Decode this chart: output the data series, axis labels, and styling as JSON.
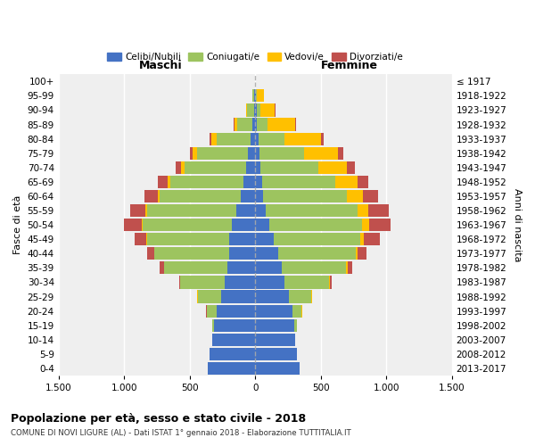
{
  "age_groups": [
    "0-4",
    "5-9",
    "10-14",
    "15-19",
    "20-24",
    "25-29",
    "30-34",
    "35-39",
    "40-44",
    "45-49",
    "50-54",
    "55-59",
    "60-64",
    "65-69",
    "70-74",
    "75-79",
    "80-84",
    "85-89",
    "90-94",
    "95-99",
    "100+"
  ],
  "birth_years": [
    "2013-2017",
    "2008-2012",
    "2003-2007",
    "1998-2002",
    "1993-1997",
    "1988-1992",
    "1983-1987",
    "1978-1982",
    "1973-1977",
    "1968-1972",
    "1963-1967",
    "1958-1962",
    "1953-1957",
    "1948-1952",
    "1943-1947",
    "1938-1942",
    "1933-1937",
    "1928-1932",
    "1923-1927",
    "1918-1922",
    "≤ 1917"
  ],
  "males": {
    "celibe": [
      360,
      345,
      325,
      315,
      295,
      260,
      230,
      215,
      200,
      200,
      175,
      145,
      110,
      90,
      70,
      55,
      35,
      20,
      10,
      5,
      1
    ],
    "coniugato": [
      1,
      2,
      5,
      15,
      75,
      180,
      340,
      480,
      570,
      625,
      685,
      680,
      620,
      560,
      470,
      390,
      260,
      120,
      50,
      15,
      0
    ],
    "vedovo": [
      0,
      0,
      0,
      0,
      1,
      1,
      2,
      2,
      3,
      5,
      8,
      10,
      15,
      20,
      25,
      30,
      40,
      20,
      10,
      2,
      0
    ],
    "divorziato": [
      0,
      0,
      0,
      0,
      2,
      5,
      10,
      30,
      50,
      90,
      130,
      120,
      100,
      70,
      40,
      25,
      15,
      5,
      2,
      0,
      0
    ]
  },
  "females": {
    "nubile": [
      340,
      320,
      305,
      300,
      285,
      255,
      225,
      205,
      175,
      140,
      105,
      80,
      60,
      50,
      40,
      30,
      25,
      15,
      10,
      5,
      0
    ],
    "coniugata": [
      0,
      1,
      3,
      15,
      70,
      175,
      340,
      490,
      590,
      660,
      710,
      700,
      640,
      560,
      440,
      340,
      200,
      80,
      30,
      10,
      0
    ],
    "vedova": [
      0,
      0,
      0,
      0,
      1,
      2,
      4,
      8,
      15,
      30,
      55,
      80,
      120,
      170,
      220,
      260,
      280,
      210,
      110,
      50,
      0
    ],
    "divorziata": [
      0,
      0,
      0,
      0,
      2,
      5,
      12,
      35,
      70,
      120,
      165,
      160,
      120,
      80,
      60,
      40,
      20,
      8,
      2,
      0,
      0
    ]
  },
  "colors": {
    "celibe": "#4472c4",
    "coniugato": "#9dc45f",
    "vedovo": "#ffc000",
    "divorziato": "#c0504d"
  },
  "title": "Popolazione per età, sesso e stato civile - 2018",
  "subtitle": "COMUNE DI NOVI LIGURE (AL) - Dati ISTAT 1° gennaio 2018 - Elaborazione TUTTITALIA.IT",
  "xlabel_left": "Maschi",
  "xlabel_right": "Femmine",
  "ylabel_left": "Fasce di età",
  "ylabel_right": "Anni di nascita",
  "xlim": 1500,
  "background_color": "#efefef",
  "legend_labels": [
    "Celibi/Nubili",
    "Coniugati/e",
    "Vedovi/e",
    "Divorziati/e"
  ]
}
